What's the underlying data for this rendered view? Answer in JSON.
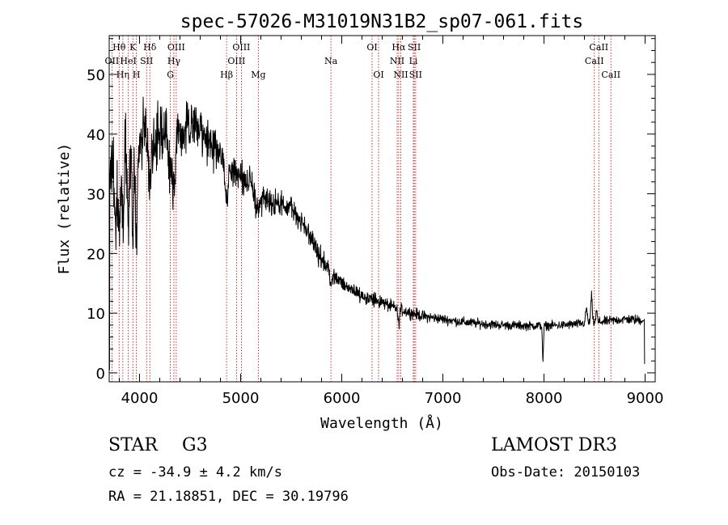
{
  "chart_data": {
    "type": "line",
    "title": "spec-57026-M31019N31B2_sp07-061.fits",
    "xlabel": "Wavelength (Å)",
    "ylabel": "Flux (relative)",
    "xlim": [
      3700,
      9100
    ],
    "ylim": [
      -1.5,
      56.5
    ],
    "xticks": [
      4000,
      5000,
      6000,
      7000,
      8000,
      9000
    ],
    "yticks": [
      0,
      10,
      20,
      30,
      40,
      50
    ],
    "x_minor_step": 200,
    "y_minor_step": 2,
    "continuum": [
      [
        3700,
        33
      ],
      [
        3760,
        36
      ],
      [
        3800,
        34
      ],
      [
        3850,
        38
      ],
      [
        3900,
        39
      ],
      [
        3950,
        40
      ],
      [
        4000,
        38
      ],
      [
        4050,
        42
      ],
      [
        4100,
        40
      ],
      [
        4150,
        39
      ],
      [
        4200,
        41
      ],
      [
        4300,
        41.5
      ],
      [
        4400,
        40
      ],
      [
        4500,
        41
      ],
      [
        4550,
        43
      ],
      [
        4600,
        41
      ],
      [
        4700,
        39
      ],
      [
        4800,
        36
      ],
      [
        4900,
        34
      ],
      [
        5000,
        33
      ],
      [
        5100,
        31.5
      ],
      [
        5200,
        29.5
      ],
      [
        5300,
        28.5
      ],
      [
        5400,
        28
      ],
      [
        5500,
        27.5
      ],
      [
        5600,
        25.5
      ],
      [
        5700,
        22.5
      ],
      [
        5750,
        20.5
      ],
      [
        5800,
        19
      ],
      [
        5900,
        16.5
      ],
      [
        6000,
        15
      ],
      [
        6100,
        14
      ],
      [
        6200,
        13
      ],
      [
        6300,
        12.3
      ],
      [
        6400,
        11.8
      ],
      [
        6500,
        11
      ],
      [
        6600,
        10.5
      ],
      [
        6700,
        10
      ],
      [
        6800,
        9.5
      ],
      [
        7000,
        9
      ],
      [
        7200,
        8.5
      ],
      [
        7400,
        8.2
      ],
      [
        7600,
        8
      ],
      [
        7800,
        7.9
      ],
      [
        8000,
        7.9
      ],
      [
        8200,
        8
      ],
      [
        8400,
        8.3
      ],
      [
        8600,
        8.6
      ],
      [
        8800,
        9
      ],
      [
        9000,
        8.8
      ]
    ],
    "features": [
      {
        "w": 3760,
        "d": -12,
        "s": 12
      },
      {
        "w": 3798,
        "d": -10,
        "s": 10
      },
      {
        "w": 3835,
        "d": -12,
        "s": 10
      },
      {
        "w": 3889,
        "d": -14,
        "s": 10
      },
      {
        "w": 3934,
        "d": -18,
        "s": 9
      },
      {
        "w": 3969,
        "d": -16,
        "s": 9
      },
      {
        "w": 4102,
        "d": -10,
        "s": 12
      },
      {
        "w": 4300,
        "d": -8,
        "s": 18
      },
      {
        "w": 4340,
        "d": -12,
        "s": 12
      },
      {
        "w": 4861,
        "d": -6,
        "s": 12
      },
      {
        "w": 5175,
        "d": -3,
        "s": 25
      },
      {
        "w": 5893,
        "d": -2,
        "s": 10
      },
      {
        "w": 6563,
        "d": -2.5,
        "s": 8
      },
      {
        "w": 7990,
        "d": -6,
        "s": 5
      },
      {
        "w": 8420,
        "d": 2.5,
        "s": 8
      },
      {
        "w": 8470,
        "d": 4.5,
        "s": 7
      },
      {
        "w": 8520,
        "d": 2,
        "s": 6
      }
    ],
    "noise": [
      [
        3700,
        8
      ],
      [
        4000,
        5
      ],
      [
        4600,
        4
      ],
      [
        5000,
        2.5
      ],
      [
        5500,
        2
      ],
      [
        6000,
        1.4
      ],
      [
        6600,
        1
      ],
      [
        7000,
        0.8
      ],
      [
        8000,
        0.7
      ],
      [
        9000,
        0.8
      ]
    ],
    "start_point": [
      3703,
      0.5
    ],
    "end_point": [
      8995,
      1.5
    ],
    "lines": [
      {
        "label": "Hθ",
        "wavelength": 3798,
        "row": 0
      },
      {
        "label": "OII",
        "wavelength": 3727,
        "row": 1
      },
      {
        "label": "Hη",
        "wavelength": 3835,
        "row": 2
      },
      {
        "label": "HeI",
        "wavelength": 3889,
        "row": 1
      },
      {
        "label": "K",
        "wavelength": 3934,
        "row": 0
      },
      {
        "label": "H",
        "wavelength": 3969,
        "row": 2
      },
      {
        "label": "SII",
        "wavelength": 4070,
        "row": 1
      },
      {
        "label": "Hδ",
        "wavelength": 4102,
        "row": 0
      },
      {
        "label": "OIII",
        "wavelength": 4363,
        "row": 0
      },
      {
        "label": "Hγ",
        "wavelength": 4340,
        "row": 1
      },
      {
        "label": "G",
        "wavelength": 4305,
        "row": 2
      },
      {
        "label": "Hβ",
        "wavelength": 4861,
        "row": 2
      },
      {
        "label": "OIII",
        "wavelength": 5007,
        "row": 0
      },
      {
        "label": "OIII",
        "wavelength": 4959,
        "row": 1
      },
      {
        "label": "Mg",
        "wavelength": 5175,
        "row": 2
      },
      {
        "label": "Na",
        "wavelength": 5893,
        "row": 1
      },
      {
        "label": "OI",
        "wavelength": 6300,
        "row": 0
      },
      {
        "label": "OI",
        "wavelength": 6364,
        "row": 2
      },
      {
        "label": "Hα",
        "wavelength": 6563,
        "row": 0
      },
      {
        "label": "NII",
        "wavelength": 6548,
        "row": 1
      },
      {
        "label": "NII",
        "wavelength": 6584,
        "row": 2
      },
      {
        "label": "SII",
        "wavelength": 6717,
        "row": 0
      },
      {
        "label": "Li",
        "wavelength": 6708,
        "row": 1
      },
      {
        "label": "SII",
        "wavelength": 6731,
        "row": 2
      },
      {
        "label": "CaII",
        "wavelength": 8542,
        "row": 0
      },
      {
        "label": "CaII",
        "wavelength": 8498,
        "row": 1
      },
      {
        "label": "CaII",
        "wavelength": 8662,
        "row": 2
      }
    ]
  },
  "info": {
    "object_class": "STAR",
    "subclass": "G3",
    "survey": "LAMOST DR3",
    "cz": "cz = -34.9 ± 4.2 km/s",
    "obs_date": "Obs-Date: 20150103",
    "radec": "RA =  21.18851, DEC =  30.19796"
  },
  "colors": {
    "axis": "#000000",
    "line_marker": "#c00000",
    "spectrum": "#000000"
  }
}
